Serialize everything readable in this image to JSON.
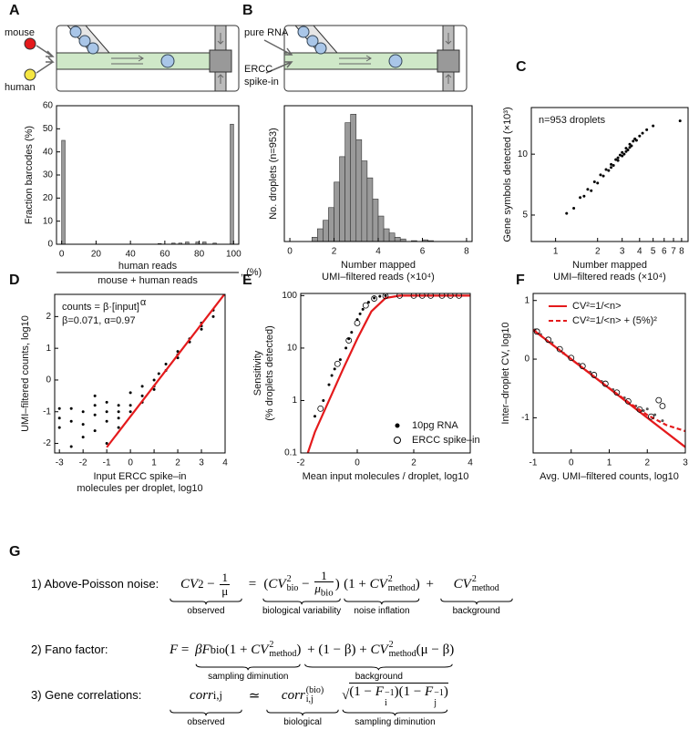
{
  "chart_data": [
    {
      "type": "bar",
      "panel": "A",
      "diagram_labels": [
        "mouse",
        "human"
      ],
      "y_label": "Fraction barcodes (%)",
      "x_label": {
        "numerator": "human reads",
        "denominator": "mouse + human reads",
        "suffix": ", (%)"
      },
      "x": [
        1,
        57,
        65,
        69,
        73,
        79,
        83,
        89,
        99
      ],
      "values": [
        45,
        0.3,
        0.5,
        0.5,
        1,
        1,
        1,
        0.5,
        52
      ],
      "color": "#9a9a9a",
      "xlim": [
        -3,
        103
      ],
      "ylim": [
        0,
        60
      ],
      "xticks": [
        0,
        20,
        40,
        60,
        80,
        100
      ],
      "yticks": [
        0,
        10,
        20,
        30,
        40,
        50,
        60
      ]
    },
    {
      "type": "histogram",
      "panel": "B",
      "diagram_labels": [
        "pure RNA",
        "ERCC",
        "spike-in"
      ],
      "y_label": "No. droplets (n=953)",
      "x_label": [
        "Number mapped",
        "UMI–filtered reads (×10⁴)"
      ],
      "bins": [
        1.0,
        1.25,
        1.5,
        1.75,
        2.0,
        2.25,
        2.5,
        2.75,
        3.0,
        3.25,
        3.5,
        3.75,
        4.0,
        4.25,
        4.5,
        4.75,
        5.0,
        5.25,
        5.5,
        5.75,
        6.0,
        6.25,
        6.5
      ],
      "values": [
        5,
        15,
        25,
        40,
        70,
        100,
        140,
        150,
        120,
        95,
        75,
        50,
        30,
        15,
        10,
        5,
        3,
        0,
        1,
        0,
        2,
        1
      ],
      "color": "#9a9a9a",
      "xlim": [
        -0.25,
        8.25
      ],
      "ylim": [
        0,
        160
      ],
      "xticks": [
        0,
        2,
        4,
        6,
        8
      ]
    },
    {
      "type": "scatter",
      "panel": "C",
      "annotation": "n=953 droplets",
      "y_label": "Gene symbols detected (×10³)",
      "x_label": [
        "Number mapped",
        "UMI–filtered reads (×10⁴)"
      ],
      "xscale": "log",
      "yscale": "log",
      "xlim": [
        0.67,
        8.9
      ],
      "ylim": [
        3.7,
        17
      ],
      "xticks": [
        1,
        2,
        3,
        4,
        5,
        6,
        7,
        8
      ],
      "yticks": [
        5,
        10
      ],
      "series": [
        {
          "style": "dot",
          "color": "#000000",
          "x": [
            1.2,
            1.35,
            1.5,
            1.6,
            1.7,
            1.8,
            1.9,
            2.0,
            2.1,
            2.2,
            2.3,
            2.4,
            2.5,
            2.6,
            2.7,
            2.8,
            2.9,
            3.0,
            3.1,
            3.2,
            3.3,
            3.4,
            3.5,
            3.6,
            3.7,
            3.8,
            4.0,
            4.2,
            4.5,
            5.0,
            7.8,
            2.5,
            2.8,
            3.0,
            3.2,
            3.4
          ],
          "values": [
            5.1,
            5.4,
            6.1,
            6.2,
            6.7,
            6.6,
            7.3,
            7.2,
            7.9,
            7.8,
            8.4,
            8.3,
            8.9,
            8.8,
            9.4,
            9.3,
            9.9,
            10.2,
            10.0,
            10.7,
            10.5,
            11.2,
            11.0,
            11.6,
            11.9,
            11.7,
            12.3,
            12.7,
            13.2,
            13.8,
            14.6,
            8.6,
            9.6,
            9.8,
            10.3,
            10.8
          ]
        }
      ]
    },
    {
      "type": "scatter",
      "panel": "D",
      "annotation": {
        "formula": "counts = β·[input]",
        "exponent": "α",
        "params": "β=0.071, α=0.97"
      },
      "y_label": "UMI–filtered counts, log10",
      "x_label": [
        "Input ERCC spike–in",
        "molecules per droplet, log10"
      ],
      "xlim": [
        -3.2,
        4
      ],
      "ylim": [
        -2.3,
        2.7
      ],
      "xticks": [
        -3,
        -2,
        -1,
        0,
        1,
        2,
        3,
        4
      ],
      "yticks": [
        -2,
        -1,
        0,
        1,
        2
      ],
      "series": [
        {
          "style": "dot",
          "color": "#000000",
          "x": [
            -3,
            -3,
            -3,
            -2.5,
            -2.5,
            -2.5,
            -2,
            -2,
            -2,
            -1.5,
            -1.5,
            -1.5,
            -1.5,
            -1,
            -1,
            -1,
            -1,
            -0.5,
            -0.5,
            -0.5,
            -0.5,
            0,
            0,
            0,
            0.5,
            0.5,
            0.5,
            1,
            1,
            1,
            1.2,
            1.5,
            1.5,
            2,
            2,
            2,
            2.5,
            2.5,
            3,
            3,
            3,
            3.5,
            3.5
          ],
          "values": [
            -0.9,
            -1.2,
            -1.5,
            -0.9,
            -1.3,
            -2.1,
            -1.0,
            -1.4,
            -1.8,
            -0.5,
            -0.8,
            -1.1,
            -1.6,
            -0.7,
            -1.0,
            -1.3,
            -2.0,
            -0.8,
            -1.0,
            -1.2,
            -1.5,
            -0.4,
            -0.8,
            -1.0,
            -0.2,
            -0.5,
            -0.7,
            0,
            -0.3,
            -0.2,
            0.2,
            0.3,
            0.5,
            0.8,
            0.7,
            0.9,
            1.3,
            1.2,
            1.8,
            1.7,
            1.6,
            2.2,
            2.0
          ]
        },
        {
          "style": "line",
          "color": "#e41a1c",
          "x": [
            -1.0,
            4.0
          ],
          "values": [
            -2.12,
            2.73
          ]
        }
      ]
    },
    {
      "type": "scatter",
      "panel": "E",
      "legend": "lower right",
      "y_label": [
        "Sensitivity",
        "(% droplets detected)"
      ],
      "x_label": [
        "Mean input molecules / droplet, log10"
      ],
      "yscale": "log",
      "xlim": [
        -2,
        4
      ],
      "ylim": [
        0.1,
        110
      ],
      "xticks": [
        -2,
        0,
        2,
        4
      ],
      "yticks": [
        0.1,
        1,
        10,
        100
      ],
      "series": [
        {
          "style": "line",
          "color": "#e41a1c",
          "x": [
            -1.75,
            -1.5,
            -1,
            -0.5,
            0,
            0.5,
            1,
            1.5,
            4
          ],
          "values": [
            0.1,
            0.25,
            1,
            4,
            15,
            50,
            90,
            100,
            100
          ]
        },
        {
          "name": "10pg RNA",
          "style": "dot",
          "color": "#000000",
          "x": [
            -1.5,
            -1.2,
            -1,
            -0.9,
            -0.8,
            -0.6,
            -0.4,
            -0.3,
            -0.2,
            0,
            0.1,
            0.2,
            0.4,
            0.6,
            0.8,
            1
          ],
          "values": [
            0.5,
            1,
            2,
            3,
            4,
            6,
            10,
            15,
            20,
            35,
            45,
            55,
            75,
            90,
            97,
            100
          ]
        },
        {
          "name": "ERCC spike–in",
          "style": "circle",
          "color": "#000000",
          "x": [
            -1.3,
            -0.7,
            -0.3,
            0,
            0.3,
            0.6,
            1,
            1.5,
            2,
            2.3,
            2.6,
            3,
            3.3,
            3.6
          ],
          "values": [
            0.7,
            5,
            14,
            30,
            65,
            88,
            98,
            100,
            100,
            100,
            100,
            100,
            100,
            100
          ]
        }
      ]
    },
    {
      "type": "scatter",
      "panel": "F",
      "legend": "upper right",
      "y_label": "Inter–droplet CV, log10",
      "x_label": [
        "Avg. UMI–filtered counts, log10"
      ],
      "xlim": [
        -1,
        3
      ],
      "ylim": [
        -1.6,
        1.12
      ],
      "xticks": [
        -1,
        0,
        1,
        2,
        3
      ],
      "yticks": [
        -1,
        0,
        1
      ],
      "series": [
        {
          "style": "dot",
          "color": "#555555",
          "x": [
            -0.95,
            -0.8,
            -0.5,
            -0.2,
            0.2,
            0.5,
            0.8,
            1.1,
            1.4,
            1.7,
            1.9,
            2.0,
            2.2,
            2.4
          ],
          "values": [
            0.5,
            0.42,
            0.28,
            0.1,
            -0.08,
            -0.22,
            -0.38,
            -0.52,
            -0.66,
            -0.8,
            -0.88,
            -0.85,
            -0.95,
            -1.05
          ]
        },
        {
          "name": "CV²=1/<n>",
          "style": "line",
          "color": "#e41a1c",
          "x": [
            -1,
            3
          ],
          "values": [
            0.5,
            -1.5
          ]
        },
        {
          "name": "CV²=1/<n> + (5%)²",
          "style": "dashed",
          "color": "#e41a1c",
          "x": [
            -1,
            0,
            1,
            1.5,
            2,
            2.5,
            3
          ],
          "values": [
            0.5,
            0.0,
            -0.495,
            -0.734,
            -0.952,
            -1.124,
            -1.228
          ]
        },
        {
          "style": "circle",
          "color": "#000000",
          "x": [
            -0.9,
            -0.6,
            -0.3,
            0,
            0.3,
            0.6,
            0.9,
            1.2,
            1.5,
            1.8,
            2.1,
            2.3,
            2.4
          ],
          "values": [
            0.47,
            0.33,
            0.17,
            0.02,
            -0.12,
            -0.27,
            -0.42,
            -0.57,
            -0.72,
            -0.86,
            -0.98,
            -0.7,
            -0.8
          ]
        }
      ]
    }
  ],
  "equations": {
    "panel": "G",
    "rows": [
      {
        "label": "1) Above-Poisson noise:",
        "groups": [
          {
            "terms": [
              {
                "t": "CV",
                "sup": "2"
              },
              " − ",
              {
                "frac": [
                  [
                    "1"
                  ],
                  [
                    "μ"
                  ]
                ]
              }
            ],
            "note": "observed"
          },
          {
            "terms": [
              " = "
            ]
          },
          {
            "terms": [
              "(",
              {
                "t": "CV",
                "sup": "2",
                "sub": "bio"
              },
              " − ",
              {
                "frac": [
                  [
                    "1"
                  ],
                  [
                    {
                      "t": "μ",
                      "sub": "bio"
                    }
                  ]
                ]
              },
              ")"
            ],
            "note": "biological variability"
          },
          {
            "terms": [
              "(1 + ",
              {
                "t": "CV",
                "sup": "2",
                "sub": "method"
              },
              ")"
            ],
            "note": "noise inflation"
          },
          {
            "terms": [
              " + "
            ]
          },
          {
            "terms": [
              {
                "t": "CV",
                "sup": "2",
                "sub": "method"
              }
            ],
            "note": "background"
          }
        ]
      },
      {
        "label": "2) Fano factor:",
        "groups": [
          {
            "terms": [
              {
                "t": "F"
              },
              " = "
            ]
          },
          {
            "terms": [
              {
                "t": "β"
              },
              {
                "t": "F",
                "sub": "bio"
              },
              "(1 + ",
              {
                "t": "CV",
                "sup": "2",
                "sub": "method"
              },
              ")"
            ],
            "note": "sampling diminution"
          },
          {
            "terms": [
              " + (1 − β) + ",
              {
                "t": "CV",
                "sup": "2",
                "sub": "method"
              },
              "(μ − β)"
            ],
            "note": "background"
          }
        ]
      },
      {
        "label": "3) Gene correlations:",
        "groups": [
          {
            "terms": [
              {
                "t": "corr",
                "sub": "i,j"
              }
            ],
            "note": "observed"
          },
          {
            "terms": [
              " ≃ "
            ]
          },
          {
            "terms": [
              {
                "t": "corr",
                "sup": "(bio)",
                "sub": "i,j"
              }
            ],
            "note": "biological"
          },
          {
            "terms": [
              {
                "sqrt": [
                  "(1 − ",
                  {
                    "t": "F",
                    "sub": "i",
                    "sup": "−1"
                  },
                  ")(1 − ",
                  {
                    "t": "F",
                    "sub": "j",
                    "sup": "−1"
                  },
                  ")"
                ]
              }
            ],
            "note": "sampling diminution"
          }
        ]
      }
    ]
  }
}
